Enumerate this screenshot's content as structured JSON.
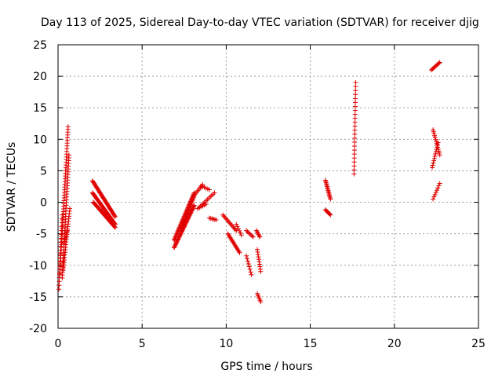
{
  "chart_data": {
    "type": "scatter",
    "title": "Day 113 of 2025, Sidereal Day-to-day VTEC variation (SDTVAR) for receiver djig",
    "xlabel": "GPS time / hours",
    "ylabel": "SDTVAR / TECUs",
    "xlim": [
      0,
      25
    ],
    "ylim": [
      -20,
      25
    ],
    "xticks": [
      0,
      5,
      10,
      15,
      20,
      25
    ],
    "yticks": [
      -20,
      -15,
      -10,
      -5,
      0,
      5,
      10,
      15,
      20,
      25
    ],
    "grid": true,
    "marker": "+",
    "color": "#e00000",
    "segments": [
      {
        "x0": 0.05,
        "y0": -13.8,
        "x1": 0.25,
        "y1": -2.0,
        "n": 20
      },
      {
        "x0": 0.1,
        "y0": -11.5,
        "x1": 0.6,
        "y1": 12.0,
        "n": 55
      },
      {
        "x0": 0.25,
        "y0": -12.0,
        "x1": 0.65,
        "y1": 7.5,
        "n": 45
      },
      {
        "x0": 0.3,
        "y0": -10.8,
        "x1": 0.7,
        "y1": -1.0,
        "n": 25
      },
      {
        "x0": 0.35,
        "y0": -6.5,
        "x1": 0.55,
        "y1": -4.5,
        "n": 8
      },
      {
        "x0": 2.05,
        "y0": 3.4,
        "x1": 3.4,
        "y1": -2.3,
        "n": 40
      },
      {
        "x0": 2.05,
        "y0": 1.5,
        "x1": 3.4,
        "y1": -3.5,
        "n": 40
      },
      {
        "x0": 2.1,
        "y0": 0.0,
        "x1": 3.4,
        "y1": -4.0,
        "n": 35
      },
      {
        "x0": 6.9,
        "y0": -6.0,
        "x1": 8.1,
        "y1": 1.5,
        "n": 45
      },
      {
        "x0": 6.9,
        "y0": -7.2,
        "x1": 8.1,
        "y1": -0.5,
        "n": 45
      },
      {
        "x0": 7.3,
        "y0": -4.5,
        "x1": 8.1,
        "y1": 1.0,
        "n": 25
      },
      {
        "x0": 8.0,
        "y0": 0.8,
        "x1": 8.6,
        "y1": 2.8,
        "n": 10
      },
      {
        "x0": 8.4,
        "y0": -0.8,
        "x1": 9.3,
        "y1": 1.5,
        "n": 12
      },
      {
        "x0": 8.5,
        "y0": 2.6,
        "x1": 9.0,
        "y1": 2.0,
        "n": 6
      },
      {
        "x0": 8.3,
        "y0": -1.0,
        "x1": 8.8,
        "y1": -0.3,
        "n": 6
      },
      {
        "x0": 9.0,
        "y0": -2.5,
        "x1": 9.4,
        "y1": -2.8,
        "n": 6
      },
      {
        "x0": 9.8,
        "y0": -2.0,
        "x1": 10.6,
        "y1": -4.5,
        "n": 14
      },
      {
        "x0": 10.1,
        "y0": -5.0,
        "x1": 10.8,
        "y1": -8.0,
        "n": 16
      },
      {
        "x0": 10.6,
        "y0": -3.5,
        "x1": 10.9,
        "y1": -5.2,
        "n": 6
      },
      {
        "x0": 11.2,
        "y0": -4.5,
        "x1": 11.6,
        "y1": -5.5,
        "n": 7
      },
      {
        "x0": 11.2,
        "y0": -8.5,
        "x1": 11.5,
        "y1": -11.5,
        "n": 8
      },
      {
        "x0": 11.8,
        "y0": -4.5,
        "x1": 12.0,
        "y1": -5.5,
        "n": 6
      },
      {
        "x0": 11.85,
        "y0": -7.5,
        "x1": 12.05,
        "y1": -11.0,
        "n": 10
      },
      {
        "x0": 11.85,
        "y0": -14.5,
        "x1": 12.05,
        "y1": -15.8,
        "n": 6
      },
      {
        "x0": 15.9,
        "y0": 3.5,
        "x1": 16.2,
        "y1": 0.5,
        "n": 16
      },
      {
        "x0": 15.9,
        "y0": -1.2,
        "x1": 16.2,
        "y1": -2.0,
        "n": 8
      },
      {
        "x0": 17.6,
        "y0": 4.5,
        "x1": 17.7,
        "y1": 19.0,
        "n": 24
      },
      {
        "x0": 22.2,
        "y0": 21.0,
        "x1": 22.7,
        "y1": 22.2,
        "n": 10
      },
      {
        "x0": 22.3,
        "y0": 11.5,
        "x1": 22.7,
        "y1": 7.5,
        "n": 14
      },
      {
        "x0": 22.25,
        "y0": 5.5,
        "x1": 22.6,
        "y1": 9.5,
        "n": 12
      },
      {
        "x0": 22.3,
        "y0": 0.5,
        "x1": 22.7,
        "y1": 3.0,
        "n": 8
      }
    ]
  }
}
